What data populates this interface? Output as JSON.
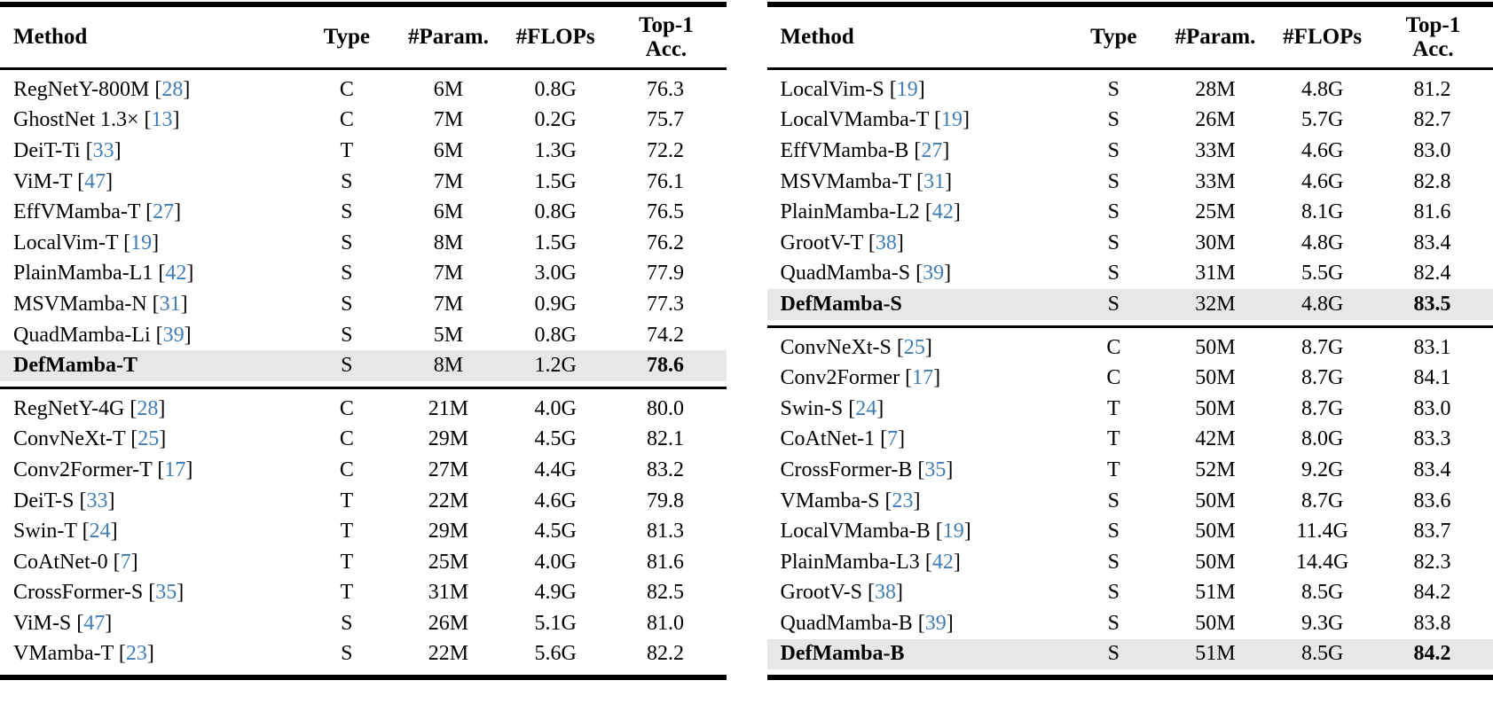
{
  "styles": {
    "citation_color": "#3f7cb5",
    "highlight_row_color": "#e7e7e7",
    "rule_color": "#000000",
    "text_color": "#000000",
    "background": "#ffffff"
  },
  "header": {
    "col_method": "Method",
    "col_type": "Type",
    "col_params": "#Param.",
    "col_flops": "#FLOPs",
    "col_acc_line1": "Top-1",
    "col_acc_line2": "Acc."
  },
  "tables": [
    {
      "name": "left",
      "sections": [
        {
          "rows": [
            {
              "method": "RegNetY-800M",
              "cite": "28",
              "type": "C",
              "params": "6M",
              "flops": "0.8G",
              "acc": "76.3",
              "highlight": false
            },
            {
              "method": "GhostNet 1.3×",
              "cite": "13",
              "type": "C",
              "params": "7M",
              "flops": "0.2G",
              "acc": "75.7",
              "highlight": false
            },
            {
              "method": "DeiT-Ti",
              "cite": "33",
              "type": "T",
              "params": "6M",
              "flops": "1.3G",
              "acc": "72.2",
              "highlight": false
            },
            {
              "method": "ViM-T",
              "cite": "47",
              "type": "S",
              "params": "7M",
              "flops": "1.5G",
              "acc": "76.1",
              "highlight": false
            },
            {
              "method": "EffVMamba-T",
              "cite": "27",
              "type": "S",
              "params": "6M",
              "flops": "0.8G",
              "acc": "76.5",
              "highlight": false
            },
            {
              "method": "LocalVim-T",
              "cite": "19",
              "type": "S",
              "params": "8M",
              "flops": "1.5G",
              "acc": "76.2",
              "highlight": false
            },
            {
              "method": "PlainMamba-L1",
              "cite": "42",
              "type": "S",
              "params": "7M",
              "flops": "3.0G",
              "acc": "77.9",
              "highlight": false
            },
            {
              "method": "MSVMamba-N",
              "cite": "31",
              "type": "S",
              "params": "7M",
              "flops": "0.9G",
              "acc": "77.3",
              "highlight": false
            },
            {
              "method": "QuadMamba-Li",
              "cite": "39",
              "type": "S",
              "params": "5M",
              "flops": "0.8G",
              "acc": "74.2",
              "highlight": false
            },
            {
              "method": "DefMamba-T",
              "cite": null,
              "type": "S",
              "params": "8M",
              "flops": "1.2G",
              "acc": "78.6",
              "highlight": true
            }
          ]
        },
        {
          "rows": [
            {
              "method": "RegNetY-4G",
              "cite": "28",
              "type": "C",
              "params": "21M",
              "flops": "4.0G",
              "acc": "80.0",
              "highlight": false
            },
            {
              "method": "ConvNeXt-T",
              "cite": "25",
              "type": "C",
              "params": "29M",
              "flops": "4.5G",
              "acc": "82.1",
              "highlight": false
            },
            {
              "method": "Conv2Former-T",
              "cite": "17",
              "type": "C",
              "params": "27M",
              "flops": "4.4G",
              "acc": "83.2",
              "highlight": false
            },
            {
              "method": "DeiT-S",
              "cite": "33",
              "type": "T",
              "params": "22M",
              "flops": "4.6G",
              "acc": "79.8",
              "highlight": false
            },
            {
              "method": "Swin-T",
              "cite": "24",
              "type": "T",
              "params": "29M",
              "flops": "4.5G",
              "acc": "81.3",
              "highlight": false
            },
            {
              "method": "CoAtNet-0",
              "cite": "7",
              "type": "T",
              "params": "25M",
              "flops": "4.0G",
              "acc": "81.6",
              "highlight": false
            },
            {
              "method": "CrossFormer-S",
              "cite": "35",
              "type": "T",
              "params": "31M",
              "flops": "4.9G",
              "acc": "82.5",
              "highlight": false
            },
            {
              "method": "ViM-S",
              "cite": "47",
              "type": "S",
              "params": "26M",
              "flops": "5.1G",
              "acc": "81.0",
              "highlight": false
            },
            {
              "method": "VMamba-T",
              "cite": "23",
              "type": "S",
              "params": "22M",
              "flops": "5.6G",
              "acc": "82.2",
              "highlight": false
            }
          ]
        }
      ]
    },
    {
      "name": "right",
      "sections": [
        {
          "rows": [
            {
              "method": "LocalVim-S",
              "cite": "19",
              "type": "S",
              "params": "28M",
              "flops": "4.8G",
              "acc": "81.2",
              "highlight": false
            },
            {
              "method": "LocalVMamba-T",
              "cite": "19",
              "type": "S",
              "params": "26M",
              "flops": "5.7G",
              "acc": "82.7",
              "highlight": false
            },
            {
              "method": "EffVMamba-B",
              "cite": "27",
              "type": "S",
              "params": "33M",
              "flops": "4.6G",
              "acc": "83.0",
              "highlight": false
            },
            {
              "method": "MSVMamba-T",
              "cite": "31",
              "type": "S",
              "params": "33M",
              "flops": "4.6G",
              "acc": "82.8",
              "highlight": false
            },
            {
              "method": "PlainMamba-L2",
              "cite": "42",
              "type": "S",
              "params": "25M",
              "flops": "8.1G",
              "acc": "81.6",
              "highlight": false
            },
            {
              "method": "GrootV-T",
              "cite": "38",
              "type": "S",
              "params": "30M",
              "flops": "4.8G",
              "acc": "83.4",
              "highlight": false
            },
            {
              "method": "QuadMamba-S",
              "cite": "39",
              "type": "S",
              "params": "31M",
              "flops": "5.5G",
              "acc": "82.4",
              "highlight": false
            },
            {
              "method": "DefMamba-S",
              "cite": null,
              "type": "S",
              "params": "32M",
              "flops": "4.8G",
              "acc": "83.5",
              "highlight": true
            }
          ]
        },
        {
          "rows": [
            {
              "method": "ConvNeXt-S",
              "cite": "25",
              "type": "C",
              "params": "50M",
              "flops": "8.7G",
              "acc": "83.1",
              "highlight": false
            },
            {
              "method": "Conv2Former",
              "cite": "17",
              "type": "C",
              "params": "50M",
              "flops": "8.7G",
              "acc": "84.1",
              "highlight": false
            },
            {
              "method": "Swin-S",
              "cite": "24",
              "type": "T",
              "params": "50M",
              "flops": "8.7G",
              "acc": "83.0",
              "highlight": false
            },
            {
              "method": "CoAtNet-1",
              "cite": "7",
              "type": "T",
              "params": "42M",
              "flops": "8.0G",
              "acc": "83.3",
              "highlight": false
            },
            {
              "method": "CrossFormer-B",
              "cite": "35",
              "type": "T",
              "params": "52M",
              "flops": "9.2G",
              "acc": "83.4",
              "highlight": false
            },
            {
              "method": "VMamba-S",
              "cite": "23",
              "type": "S",
              "params": "50M",
              "flops": "8.7G",
              "acc": "83.6",
              "highlight": false
            },
            {
              "method": "LocalVMamba-B",
              "cite": "19",
              "type": "S",
              "params": "50M",
              "flops": "11.4G",
              "acc": "83.7",
              "highlight": false
            },
            {
              "method": "PlainMamba-L3",
              "cite": "42",
              "type": "S",
              "params": "50M",
              "flops": "14.4G",
              "acc": "82.3",
              "highlight": false
            },
            {
              "method": "GrootV-S",
              "cite": "38",
              "type": "S",
              "params": "51M",
              "flops": "8.5G",
              "acc": "84.2",
              "highlight": false
            },
            {
              "method": "QuadMamba-B",
              "cite": "39",
              "type": "S",
              "params": "50M",
              "flops": "9.3G",
              "acc": "83.8",
              "highlight": false
            },
            {
              "method": "DefMamba-B",
              "cite": null,
              "type": "S",
              "params": "51M",
              "flops": "8.5G",
              "acc": "84.2",
              "highlight": true
            }
          ]
        }
      ]
    }
  ]
}
